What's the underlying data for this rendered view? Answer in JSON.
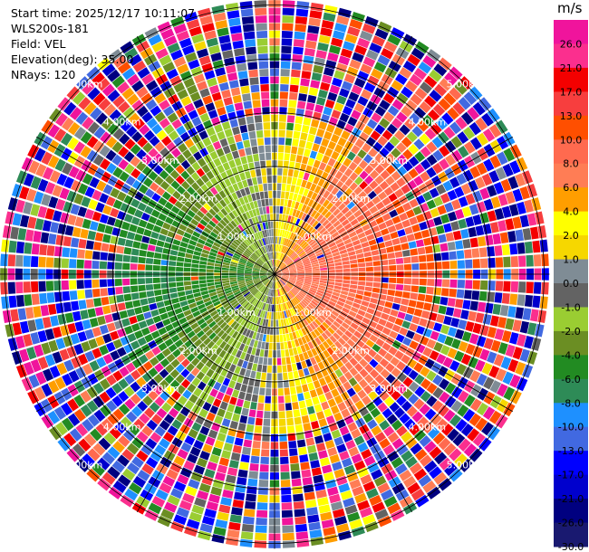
{
  "header": {
    "start_time": "Start time: 2025/12/17 10:11:07",
    "instrument": "WLS200s-181",
    "field": "Field: VEL",
    "elevation": "Elevation(deg): 35.00",
    "nrays": "NRays: 120"
  },
  "colorbar": {
    "unit": "m/s",
    "bins": [
      {
        "label": "26.0",
        "color": "#f0149c"
      },
      {
        "label": "21.0",
        "color": "#fb2f8e"
      },
      {
        "label": "17.0",
        "color": "#f40000"
      },
      {
        "label": "13.0",
        "color": "#f73e3e"
      },
      {
        "label": "10.0",
        "color": "#ff4f00"
      },
      {
        "label": "8.0",
        "color": "#ff6a4f"
      },
      {
        "label": "6.0",
        "color": "#ff7d55"
      },
      {
        "label": "4.0",
        "color": "#ff9e00"
      },
      {
        "label": "2.0",
        "color": "#ffff00"
      },
      {
        "label": "1.0",
        "color": "#f6d700"
      },
      {
        "label": "0.0",
        "color": "#7f8c95"
      },
      {
        "label": "-1.0",
        "color": "#636363"
      },
      {
        "label": "-2.0",
        "color": "#9acd32"
      },
      {
        "label": "-4.0",
        "color": "#6b8e23"
      },
      {
        "label": "-6.0",
        "color": "#228b22"
      },
      {
        "label": "-8.0",
        "color": "#2e8b57"
      },
      {
        "label": "-10.0",
        "color": "#1e90ff"
      },
      {
        "label": "-13.0",
        "color": "#4169e1"
      },
      {
        "label": "-17.0",
        "color": "#0000ff"
      },
      {
        "label": "-21.0",
        "color": "#0000cd"
      },
      {
        "label": "-26.0",
        "color": "#000080"
      },
      {
        "label": "-30.0",
        "color": "#191970"
      }
    ]
  },
  "chart_data": {
    "type": "heatmap",
    "projection": "polar-ppi",
    "field": "VEL",
    "nrays": 120,
    "range_rings_km": [
      1.0,
      2.0,
      3.0,
      4.0,
      5.0
    ],
    "ring_labels": [
      "1.00km",
      "2.00km",
      "3.00km",
      "4.00km",
      "5.00km"
    ],
    "max_range_km": 5.1,
    "gates": 36,
    "pattern": {
      "description_values": "positive velocities toward east, negative toward west, noisy beyond 3 km",
      "max_abs_velocity_ms": 8
    }
  }
}
